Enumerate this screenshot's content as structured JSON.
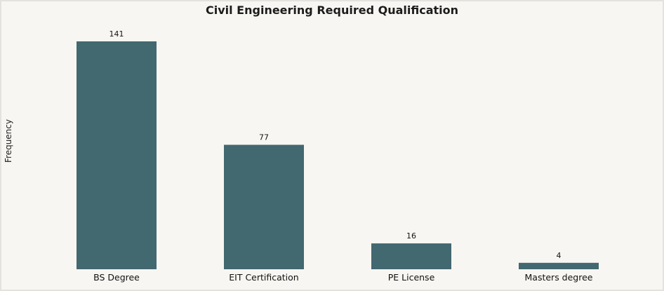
{
  "chart_data": {
    "type": "bar",
    "title": "Civil Engineering Required Qualification",
    "xlabel": "",
    "ylabel": "Frequency",
    "categories": [
      "BS Degree",
      "EIT Certification",
      "PE License",
      "Masters degree"
    ],
    "values": [
      141,
      77,
      16,
      4
    ],
    "ylim": [
      0,
      141
    ],
    "grid": false,
    "bar_color": "#426870",
    "background_color": "#f8f6f2",
    "show_data_labels": true
  }
}
